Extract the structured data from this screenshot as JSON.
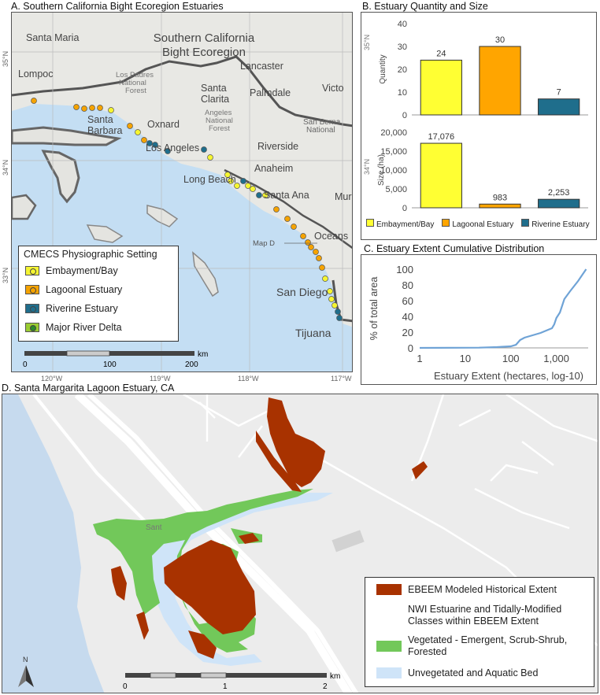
{
  "panel_a": {
    "title": "A. Southern California Bight Ecoregion Estuaries",
    "region_label": [
      "Southern California",
      "Bight Ecoregion"
    ],
    "cities": [
      "Santa Maria",
      "Lompoc",
      "Los Padres",
      "National",
      "Forest",
      "Santa",
      "Barbara",
      "Oxnard",
      "Santa",
      "Clarita",
      "Angeles",
      "National",
      "Forest",
      "Lancaster",
      "Palmdale",
      "Victo",
      "San Berna",
      "National",
      "Los Angeles",
      "Riverside",
      "Anaheim",
      "Long Beach",
      "Santa Ana",
      "Mur",
      "Oceans",
      "San Diego",
      "Tijuana"
    ],
    "map_d_label": "Map D",
    "lat_labels": [
      "35°N",
      "34°N",
      "33°N"
    ],
    "lon_labels": [
      "120°W",
      "119°W",
      "118°W",
      "117°W"
    ],
    "scale": {
      "ticks": [
        "0",
        "100",
        "200"
      ],
      "unit": "km"
    },
    "legend": {
      "title": "CMECS Physiographic Setting",
      "items": [
        {
          "label": "Embayment/Bay",
          "color": "#f5f532"
        },
        {
          "label": "Lagoonal Estuary",
          "color": "#f5a300"
        },
        {
          "label": "Riverine Estuary",
          "color": "#1f6e8c"
        },
        {
          "label": "Major River Delta",
          "color": "#9acd32"
        }
      ]
    }
  },
  "panel_b": {
    "title": "B. Estuary Quantity and Size",
    "lat_labels": [
      "35°N",
      "34°N"
    ],
    "legend": [
      "Embayment/Bay",
      "Lagoonal Estuary",
      "Riverine Estuary"
    ]
  },
  "panel_c": {
    "title": "C. Estuary Extent Cumulative Distribution"
  },
  "panel_d": {
    "title": "D. Santa Margarita Lagoon Estuary, CA",
    "place_label": "Sant",
    "north": "N",
    "scale": {
      "ticks": [
        "0",
        "1",
        "2"
      ],
      "unit": "km"
    },
    "legend": {
      "item1": "EBEEM Modeled Historical Extent",
      "heading": "NWI Estuarine and Tidally-Modified Classes within EBEEM Extent",
      "item2": "Vegetated - Emergent, Scrub-Shrub, Forested",
      "item3": "Unvegetated and Aquatic Bed"
    },
    "colors": {
      "historical": "#a83200",
      "vegetated": "#72c85a",
      "unvegetated": "#cfe4f8"
    }
  },
  "chart_data": [
    {
      "type": "bar",
      "categories": [
        "Embayment/Bay",
        "Lagoonal Estuary",
        "Riverine Estuary"
      ],
      "values": [
        24,
        30,
        7
      ],
      "labels": [
        "24",
        "30",
        "7"
      ],
      "colors": [
        "#ffff33",
        "#ffa500",
        "#1f6e8c"
      ],
      "ylabel": "Quantity",
      "ylim": [
        0,
        40
      ],
      "yticks": [
        "0",
        "10",
        "20",
        "30",
        "40"
      ]
    },
    {
      "type": "bar",
      "categories": [
        "Embayment/Bay",
        "Lagoonal Estuary",
        "Riverine Estuary"
      ],
      "values": [
        17076,
        983,
        2253
      ],
      "labels": [
        "17,076",
        "983",
        "2,253"
      ],
      "colors": [
        "#ffff33",
        "#ffa500",
        "#1f6e8c"
      ],
      "ylabel": "Size (ha)",
      "ylim": [
        0,
        20000
      ],
      "yticks": [
        "0",
        "5,000",
        "10,000",
        "15,000",
        "20,000"
      ]
    },
    {
      "type": "line",
      "xscale": "log",
      "xlabel": "Estuary Extent (hectares, log-10)",
      "ylabel": "% of total area",
      "xlim": [
        1,
        5000
      ],
      "ylim": [
        0,
        100
      ],
      "xticks": [
        "1",
        "10",
        "100",
        "1,000"
      ],
      "yticks": [
        "0",
        "20",
        "40",
        "60",
        "80",
        "100"
      ],
      "series": [
        {
          "x": [
            1,
            20,
            50,
            100,
            130,
            160,
            200,
            300,
            450,
            600,
            800,
            900,
            1000,
            1200,
            1500,
            2000,
            3000,
            4500
          ],
          "y": [
            0,
            0.3,
            1,
            2,
            4,
            10,
            13,
            16,
            19,
            22,
            25,
            30,
            38,
            45,
            62,
            72,
            85,
            100
          ]
        }
      ]
    }
  ]
}
